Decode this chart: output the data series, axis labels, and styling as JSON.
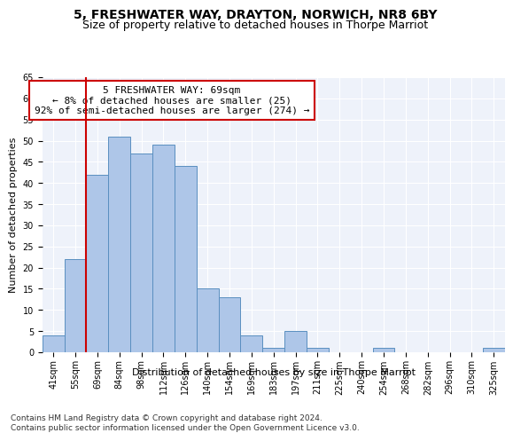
{
  "title": "5, FRESHWATER WAY, DRAYTON, NORWICH, NR8 6BY",
  "subtitle": "Size of property relative to detached houses in Thorpe Marriot",
  "xlabel": "Distribution of detached houses by size in Thorpe Marriot",
  "ylabel": "Number of detached properties",
  "footer1": "Contains HM Land Registry data © Crown copyright and database right 2024.",
  "footer2": "Contains public sector information licensed under the Open Government Licence v3.0.",
  "annotation_line1": "5 FRESHWATER WAY: 69sqm",
  "annotation_line2": "← 8% of detached houses are smaller (25)",
  "annotation_line3": "92% of semi-detached houses are larger (274) →",
  "bar_categories": [
    "41sqm",
    "55sqm",
    "69sqm",
    "84sqm",
    "98sqm",
    "112sqm",
    "126sqm",
    "140sqm",
    "154sqm",
    "169sqm",
    "183sqm",
    "197sqm",
    "211sqm",
    "225sqm",
    "240sqm",
    "254sqm",
    "268sqm",
    "282sqm",
    "296sqm",
    "310sqm",
    "325sqm"
  ],
  "bar_values": [
    4,
    22,
    42,
    51,
    47,
    49,
    44,
    15,
    13,
    4,
    1,
    5,
    1,
    0,
    0,
    1,
    0,
    0,
    0,
    0,
    1
  ],
  "bar_color": "#aec6e8",
  "bar_edge_color": "#5a8fc0",
  "vertical_line_color": "#cc0000",
  "ylim": [
    0,
    65
  ],
  "yticks": [
    0,
    5,
    10,
    15,
    20,
    25,
    30,
    35,
    40,
    45,
    50,
    55,
    60,
    65
  ],
  "background_color": "#eef2fa",
  "annotation_box_color": "#ffffff",
  "annotation_box_edge": "#cc0000",
  "title_fontsize": 10,
  "subtitle_fontsize": 9,
  "axis_label_fontsize": 8,
  "tick_fontsize": 7,
  "annotation_fontsize": 8,
  "footer_fontsize": 6.5
}
